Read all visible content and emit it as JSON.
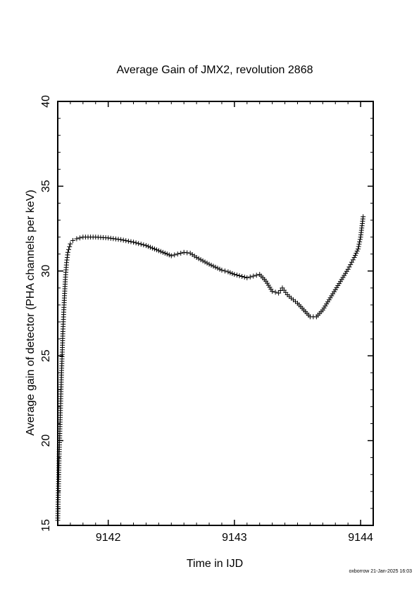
{
  "footer": "oxborrow 21-Jan-2025 16:03",
  "chart_data": {
    "type": "scatter",
    "title": "Average Gain of JMX2, revolution 2868",
    "xlabel": "Time in IJD",
    "ylabel": "Average gain of detector (PHA channels per keV)",
    "xlim": [
      9141.6,
      9144.1
    ],
    "ylim": [
      15,
      40
    ],
    "xticks": [
      9142,
      9143,
      9144
    ],
    "yticks": [
      15,
      20,
      25,
      30,
      35,
      40
    ],
    "marker": "+",
    "grid": false,
    "series": [
      {
        "x": [
          9141.6,
          9141.61,
          9141.62,
          9141.63,
          9141.64,
          9141.65,
          9141.66,
          9141.67,
          9141.68,
          9141.7,
          9141.72,
          9141.75,
          9141.8,
          9141.9,
          9142.0,
          9142.1,
          9142.2,
          9142.3,
          9142.4,
          9142.5,
          9142.55,
          9142.6,
          9142.65,
          9142.7,
          9142.8,
          9142.9,
          9142.95,
          9143.0,
          9143.1,
          9143.15,
          9143.2,
          9143.25,
          9143.3,
          9143.35,
          9143.38,
          9143.42,
          9143.45,
          9143.5,
          9143.55,
          9143.6,
          9143.65,
          9143.7,
          9143.75,
          9143.8,
          9143.85,
          9143.9,
          9143.95,
          9143.98,
          9144.0,
          9144.02
        ],
        "y": [
          15.3,
          18.8,
          21.5,
          24.0,
          26.3,
          28.0,
          29.5,
          30.5,
          31.1,
          31.6,
          31.8,
          31.9,
          32.0,
          32.0,
          31.95,
          31.85,
          31.7,
          31.5,
          31.2,
          30.9,
          31.0,
          31.1,
          31.05,
          30.8,
          30.4,
          30.05,
          29.95,
          29.8,
          29.6,
          29.7,
          29.8,
          29.4,
          28.8,
          28.7,
          29.0,
          28.6,
          28.4,
          28.1,
          27.7,
          27.3,
          27.3,
          27.7,
          28.3,
          28.9,
          29.5,
          30.1,
          30.8,
          31.3,
          32.0,
          33.2
        ]
      }
    ]
  }
}
